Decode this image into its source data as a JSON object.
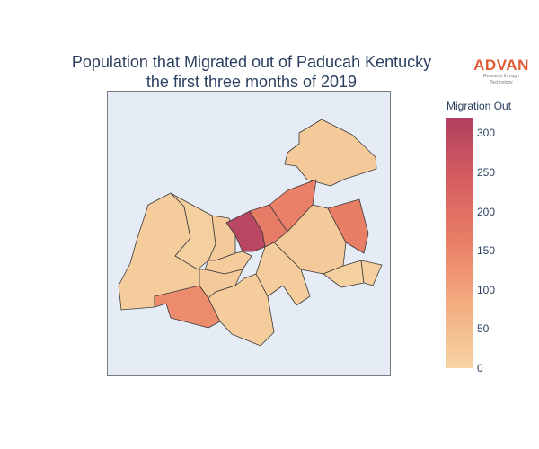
{
  "title": {
    "line1": "Population that Migrated out of Paducah Kentucky",
    "line2": "the first three months of 2019"
  },
  "logo": {
    "word": "ADVAN",
    "tagline": "Research through Technology"
  },
  "colorbar": {
    "title": "Migration Out",
    "min": 0,
    "max": 320,
    "ticks": [
      "0",
      "50",
      "100",
      "150",
      "200",
      "250",
      "300"
    ],
    "colors": [
      "#f5d4a3",
      "#f4ad80",
      "#ea8067",
      "#d55e5f",
      "#b13f61"
    ]
  },
  "chart_data": {
    "type": "choropleth",
    "region": "Paducah, Kentucky",
    "variable": "Migration Out",
    "colorscale_range": [
      0,
      320
    ],
    "regions": [
      {
        "id": "northeast-tract",
        "value": 20
      },
      {
        "id": "west-main-tract",
        "value": 15
      },
      {
        "id": "west-mid-tract",
        "value": 10
      },
      {
        "id": "south-west-tract",
        "value": 140
      },
      {
        "id": "central-left-tract",
        "value": 20
      },
      {
        "id": "central-mid-tract",
        "value": 15
      },
      {
        "id": "central-lower-tract",
        "value": 20
      },
      {
        "id": "south-central-tract",
        "value": 15
      },
      {
        "id": "downtown-tract",
        "value": 300
      },
      {
        "id": "downtown-east-tract",
        "value": 170
      },
      {
        "id": "north-diagonal-tract",
        "value": 160
      },
      {
        "id": "east-mid-tract",
        "value": 20
      },
      {
        "id": "east-tract",
        "value": 165
      },
      {
        "id": "east-small-tract",
        "value": 10
      },
      {
        "id": "southeast-tract",
        "value": 15
      },
      {
        "id": "far-southeast-tract",
        "value": 10
      }
    ]
  }
}
